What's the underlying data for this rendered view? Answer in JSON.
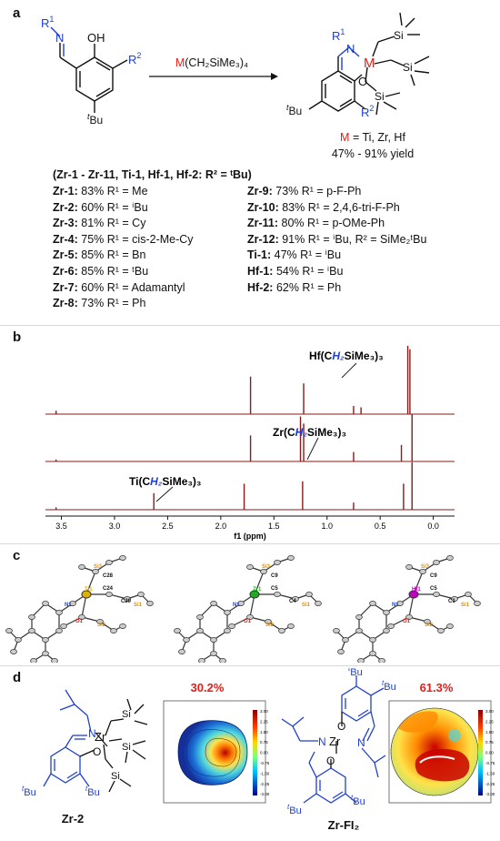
{
  "panels": {
    "a": "a",
    "b": "b",
    "c": "c",
    "d": "d"
  },
  "panel_a": {
    "reagent_metal": "M",
    "reagent_rest": "(CH₂SiMe₃)₄",
    "metal_label": "M",
    "metal_list": " = Ti, Zr, Hf",
    "yield_range": "47% - 91% yield",
    "group_header": "(Zr-1 - Zr-11, Ti-1, Hf-1, Hf-2: R² = ᵗBu)",
    "left_entries": [
      {
        "id": "Zr-1:",
        "text": " 83% R¹ = Me"
      },
      {
        "id": "Zr-2:",
        "text": " 60% R¹ = ⁱBu"
      },
      {
        "id": "Zr-3:",
        "text": " 81% R¹ = Cy"
      },
      {
        "id": "Zr-4:",
        "text": " 75% R¹ = cis-2-Me-Cy"
      },
      {
        "id": "Zr-5:",
        "text": " 85% R¹ = Bn"
      },
      {
        "id": "Zr-6:",
        "text": " 85% R¹ = ᵗBu"
      },
      {
        "id": "Zr-7:",
        "text": " 60% R¹ = Adamantyl"
      },
      {
        "id": "Zr-8:",
        "text": " 73% R¹ = Ph"
      }
    ],
    "right_entries": [
      {
        "id": "Zr-9:",
        "text": " 73% R¹ = p-F-Ph"
      },
      {
        "id": "Zr-10:",
        "text": " 83% R¹ = 2,4,6-tri-F-Ph"
      },
      {
        "id": "Zr-11:",
        "text": " 80% R¹ = p-OMe-Ph"
      },
      {
        "id": "Zr-12:",
        "text": " 91% R¹ = ⁱBu, R² = SiMe₂ᵗBu"
      },
      {
        "id": "Ti-1:",
        "text": " 47% R¹ = ⁱBu"
      },
      {
        "id": "Hf-1:",
        "text": " 54% R¹ = ⁱBu"
      },
      {
        "id": "Hf-2:",
        "text": " 62% R¹ = Ph"
      }
    ],
    "atoms": {
      "R1": "R",
      "R1sup": "1",
      "N": "N",
      "OH": "OH",
      "R2": "R",
      "R2sup": "2",
      "tBu": "Bu",
      "t": "t",
      "M": "M",
      "O": "O",
      "Si": "Si"
    }
  },
  "panel_b": {
    "spectra": [
      "Hf(CH₂SiMe₃)₃",
      "Zr(CH₂SiMe₃)₃",
      "Ti(CH₂SiMe₃)₃"
    ],
    "spectra_parts": [
      {
        "pre": "Hf(C",
        "h2": "H₂",
        "post": "SiMe₃)₃"
      },
      {
        "pre": "Zr(C",
        "h2": "H₂",
        "post": "SiMe₃)₃"
      },
      {
        "pre": "Ti(C",
        "h2": "H₂",
        "post": "SiMe₃)₃"
      }
    ],
    "xlabel": "f1 (ppm)",
    "x_ticks": [
      "3.5",
      "3.0",
      "2.5",
      "2.0",
      "1.5",
      "1.0",
      "0.5",
      "0.0"
    ],
    "peak_color": "#8b1a1a"
  },
  "chart_data": {
    "type": "line",
    "xlabel": "f1 (ppm)",
    "xlim": [
      3.65,
      -0.2
    ],
    "x_ticks": [
      3.5,
      3.0,
      2.5,
      2.0,
      1.5,
      1.0,
      0.5,
      0.0
    ],
    "series": [
      {
        "name": "Hf(CH₂SiMe₃)₃",
        "peaks_ppm": [
          3.55,
          1.72,
          1.22,
          0.75,
          0.68,
          0.24,
          0.22
        ],
        "heights": [
          0.05,
          0.55,
          0.45,
          0.12,
          0.1,
          1.0,
          0.95
        ]
      },
      {
        "name": "Zr(CH₂SiMe₃)₃",
        "peaks_ppm": [
          3.55,
          1.72,
          1.25,
          1.22,
          0.75,
          0.3,
          0.2
        ],
        "heights": [
          0.04,
          0.55,
          0.95,
          0.8,
          0.2,
          0.35,
          1.0
        ]
      },
      {
        "name": "Ti(CH₂SiMe₃)₃",
        "peaks_ppm": [
          3.55,
          2.63,
          1.78,
          1.23,
          0.75,
          0.28,
          0.2
        ],
        "heights": [
          0.05,
          0.35,
          0.55,
          0.6,
          0.15,
          0.55,
          1.0
        ]
      }
    ]
  },
  "panel_c": {
    "structures": [
      {
        "metal": "Ti1",
        "labels": [
          "Si3",
          "C28",
          "N1",
          "C24",
          "C20",
          "O1",
          "Si2",
          "Si1"
        ]
      },
      {
        "metal": "Zr1",
        "labels": [
          "Si3",
          "C9",
          "N1",
          "C5",
          "C4",
          "O1",
          "Si2",
          "Si1"
        ]
      },
      {
        "metal": "Hf1",
        "labels": [
          "Si3",
          "C9",
          "N1",
          "C5",
          "C1",
          "O1",
          "Si2",
          "Si1"
        ]
      }
    ]
  },
  "panel_d": {
    "left_name": "Zr-2",
    "right_name": "Zr-FI₂",
    "left_percent": "30.2%",
    "right_percent": "61.3%",
    "colorbar_ticks": [
      "3.00",
      "2.25",
      "1.50",
      "0.75",
      "0.00",
      "-0.75",
      "-1.50",
      "-2.25",
      "-3.00"
    ],
    "atoms": {
      "N": "N",
      "Zr": "Zr",
      "O": "O",
      "Si": "Si",
      "tBu": "Bu",
      "t": "t"
    }
  }
}
